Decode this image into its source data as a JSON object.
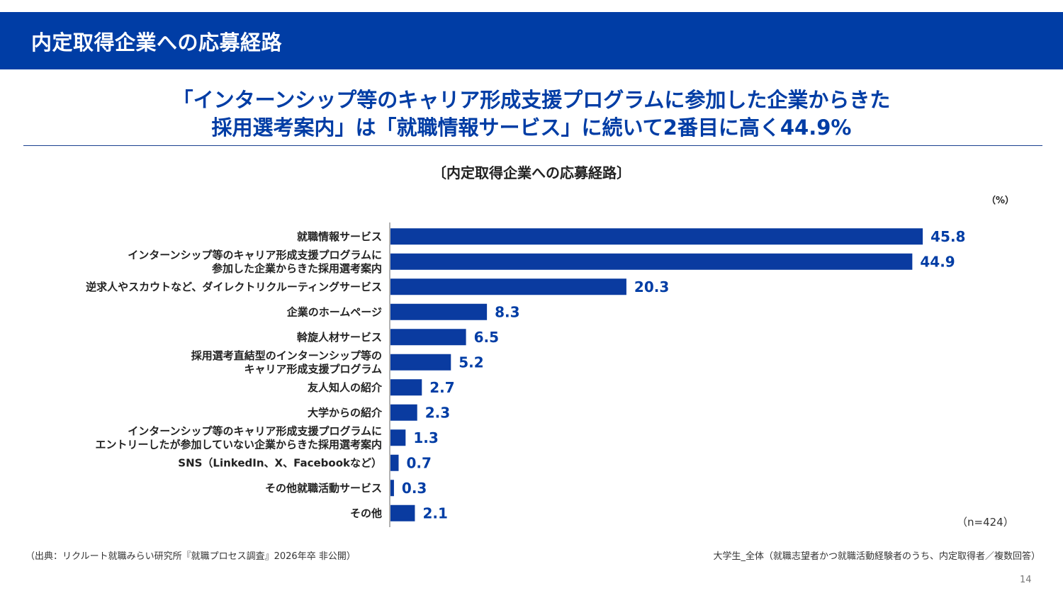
{
  "slide": {
    "title": "内定取得企業への応募経路",
    "headline_line1": "「インターンシップ等のキャリア形成支援プログラムに参加した企業からきた",
    "headline_line2": "採用選考案内」は「就職情報サービス」に続いて2番目に高く44.9%",
    "source_note": "（出典：リクルート就職みらい研究所『就職プロセス調査』2026年卒 非公開）",
    "respondents_note": "大学生_全体（就職志望者かつ就職活動経験者のうち、内定取得者／複数回答）",
    "page_number": "14"
  },
  "colors": {
    "brand": "#003da5",
    "bar": "#0a3ba0"
  },
  "chart_data": {
    "type": "bar",
    "orientation": "horizontal",
    "title": "〔内定取得企業への応募経路〕",
    "unit_label": "（%）",
    "sample_size": "（n=424）",
    "xlim": [
      0,
      50
    ],
    "categories": [
      [
        "就職情報サービス"
      ],
      [
        "インターンシップ等のキャリア形成支援プログラムに",
        "参加した企業からきた採用選考案内"
      ],
      [
        "逆求人やスカウトなど、ダイレクトリクルーティングサービス"
      ],
      [
        "企業のホームページ"
      ],
      [
        "斡旋人材サービス"
      ],
      [
        "採用選考直結型のインターンシップ等の",
        "キャリア形成支援プログラム"
      ],
      [
        "友人知人の紹介"
      ],
      [
        "大学からの紹介"
      ],
      [
        "インターンシップ等のキャリア形成支援プログラムに",
        "エントリーしたが参加していない企業からきた採用選考案内"
      ],
      [
        "SNS（LinkedIn、X、Facebookなど）"
      ],
      [
        "その他就職活動サービス"
      ],
      [
        "その他"
      ]
    ],
    "values": [
      45.8,
      44.9,
      20.3,
      8.3,
      6.5,
      5.2,
      2.7,
      2.3,
      1.3,
      0.7,
      0.3,
      2.1
    ],
    "value_labels": [
      "45.8",
      "44.9",
      "20.3",
      "8.3",
      "6.5",
      "5.2",
      "2.7",
      "2.3",
      "1.3",
      "0.7",
      "0.3",
      "2.1"
    ]
  }
}
